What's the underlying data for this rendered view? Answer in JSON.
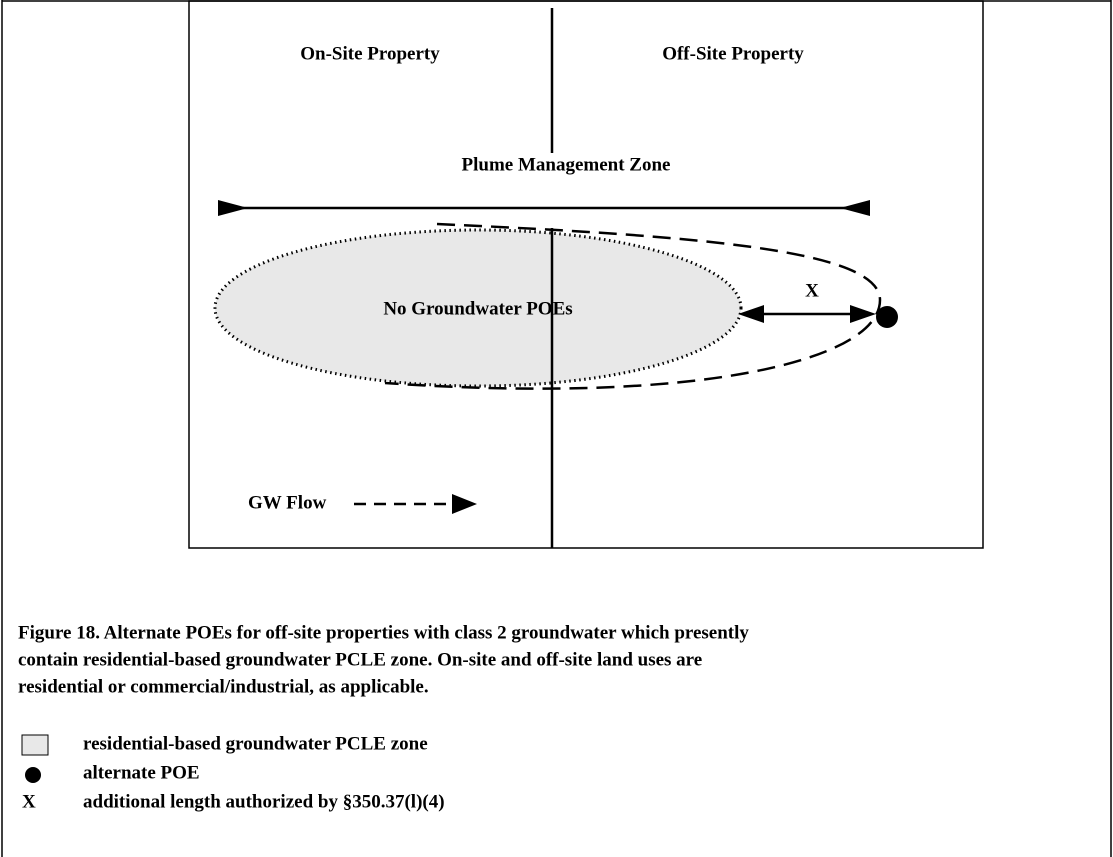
{
  "diagram": {
    "regions": {
      "left": "On-Site Property",
      "right": "Off-Site Property"
    },
    "zone_label": "Plume Management Zone",
    "plume_label": "No Groundwater POEs",
    "distance_label": "X",
    "flow_label": "GW Flow"
  },
  "caption": {
    "lines": [
      "Figure 18.  Alternate POEs for off-site properties with class 2 groundwater which presently",
      "contain residential-based groundwater PCLE zone.  On-site and off-site land uses are",
      "residential or commercial/industrial, as applicable."
    ]
  },
  "legend": {
    "items": [
      {
        "symbol": null,
        "label": "residential-based groundwater PCLE zone"
      },
      {
        "symbol": null,
        "label": "alternate POE"
      },
      {
        "symbol": "X",
        "label": "additional length authorized by §350.37(l)(4)"
      }
    ]
  }
}
